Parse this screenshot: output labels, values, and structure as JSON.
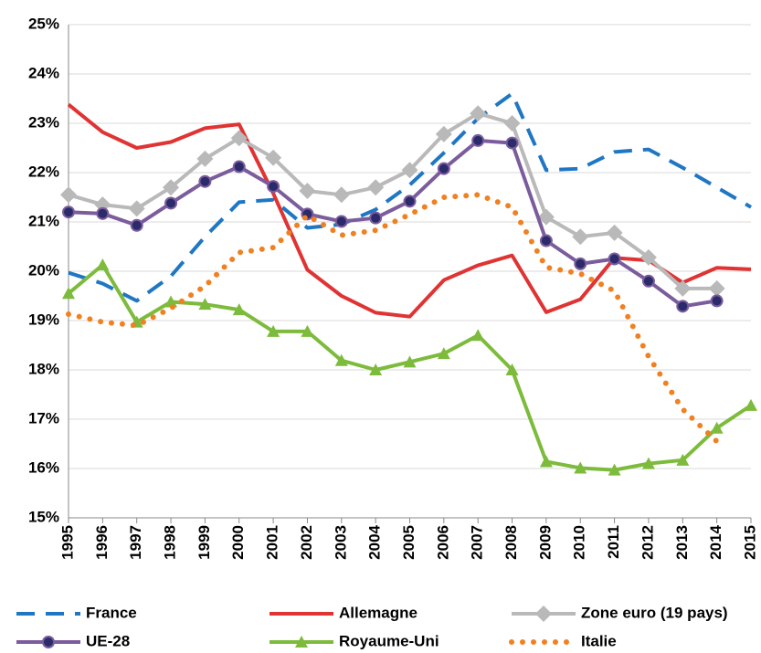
{
  "chart_data": {
    "type": "line",
    "categories": [
      "1995",
      "1996",
      "1997",
      "1998",
      "1999",
      "2000",
      "2001",
      "2002",
      "2003",
      "2004",
      "2005",
      "2006",
      "2007",
      "2008",
      "2009",
      "2010",
      "2011",
      "2012",
      "2013",
      "2014",
      "2015"
    ],
    "ylim": [
      15,
      25
    ],
    "yticks": [
      {
        "value": 15,
        "label": "15%"
      },
      {
        "value": 16,
        "label": "16%"
      },
      {
        "value": 17,
        "label": "17%"
      },
      {
        "value": 18,
        "label": "18%"
      },
      {
        "value": 19,
        "label": "19%"
      },
      {
        "value": 20,
        "label": "20%"
      },
      {
        "value": 21,
        "label": "21%"
      },
      {
        "value": 22,
        "label": "22%"
      },
      {
        "value": 23,
        "label": "23%"
      },
      {
        "value": 24,
        "label": "24%"
      },
      {
        "value": 25,
        "label": "25%"
      }
    ],
    "grid": true,
    "legend": "bottom",
    "series": [
      {
        "name": "France",
        "color": "#1f77c4",
        "dash": "dashed",
        "marker": "none",
        "values": [
          19.97,
          19.75,
          19.4,
          19.9,
          20.7,
          21.4,
          21.45,
          20.88,
          20.95,
          21.25,
          21.75,
          22.4,
          23.1,
          23.6,
          22.05,
          22.08,
          22.42,
          22.47,
          22.1,
          21.7,
          21.3
        ]
      },
      {
        "name": "Allemagne",
        "color": "#e03333",
        "dash": "solid",
        "marker": "none",
        "values": [
          23.38,
          22.82,
          22.5,
          22.62,
          22.9,
          22.98,
          21.58,
          20.03,
          19.5,
          19.16,
          19.08,
          19.82,
          20.12,
          20.32,
          19.17,
          19.43,
          20.27,
          20.22,
          19.77,
          20.07,
          20.04
        ]
      },
      {
        "name": "Zone euro (19 pays)",
        "color": "#b9b9b9",
        "dash": "solid",
        "marker": "diamond",
        "values": [
          21.55,
          21.35,
          21.27,
          21.7,
          22.28,
          22.7,
          22.3,
          21.63,
          21.55,
          21.7,
          22.05,
          22.78,
          23.2,
          23.0,
          21.1,
          20.7,
          20.78,
          20.28,
          19.65,
          19.65,
          null
        ]
      },
      {
        "name": "UE-28",
        "color": "#7b5c9c",
        "dash": "solid",
        "marker": "circle",
        "values": [
          21.2,
          21.17,
          20.93,
          21.38,
          21.82,
          22.12,
          21.72,
          21.16,
          21.01,
          21.08,
          21.42,
          22.08,
          22.65,
          22.6,
          20.62,
          20.15,
          20.25,
          19.8,
          19.29,
          19.4,
          null
        ]
      },
      {
        "name": "Royaume-Uni",
        "color": "#7dbb3c",
        "dash": "solid",
        "marker": "triangle",
        "values": [
          19.55,
          20.13,
          18.97,
          19.38,
          19.33,
          19.22,
          18.78,
          18.78,
          18.19,
          18.0,
          18.16,
          18.33,
          18.7,
          18.0,
          16.14,
          16.01,
          15.97,
          16.1,
          16.17,
          16.82,
          17.28
        ]
      },
      {
        "name": "Italie",
        "color": "#f08020",
        "dash": "dotted",
        "marker": "none",
        "values": [
          19.13,
          18.97,
          18.9,
          19.25,
          19.7,
          20.38,
          20.48,
          21.13,
          20.73,
          20.83,
          21.15,
          21.5,
          21.55,
          21.3,
          20.08,
          19.95,
          19.6,
          18.27,
          17.2,
          16.55,
          null
        ]
      }
    ]
  }
}
